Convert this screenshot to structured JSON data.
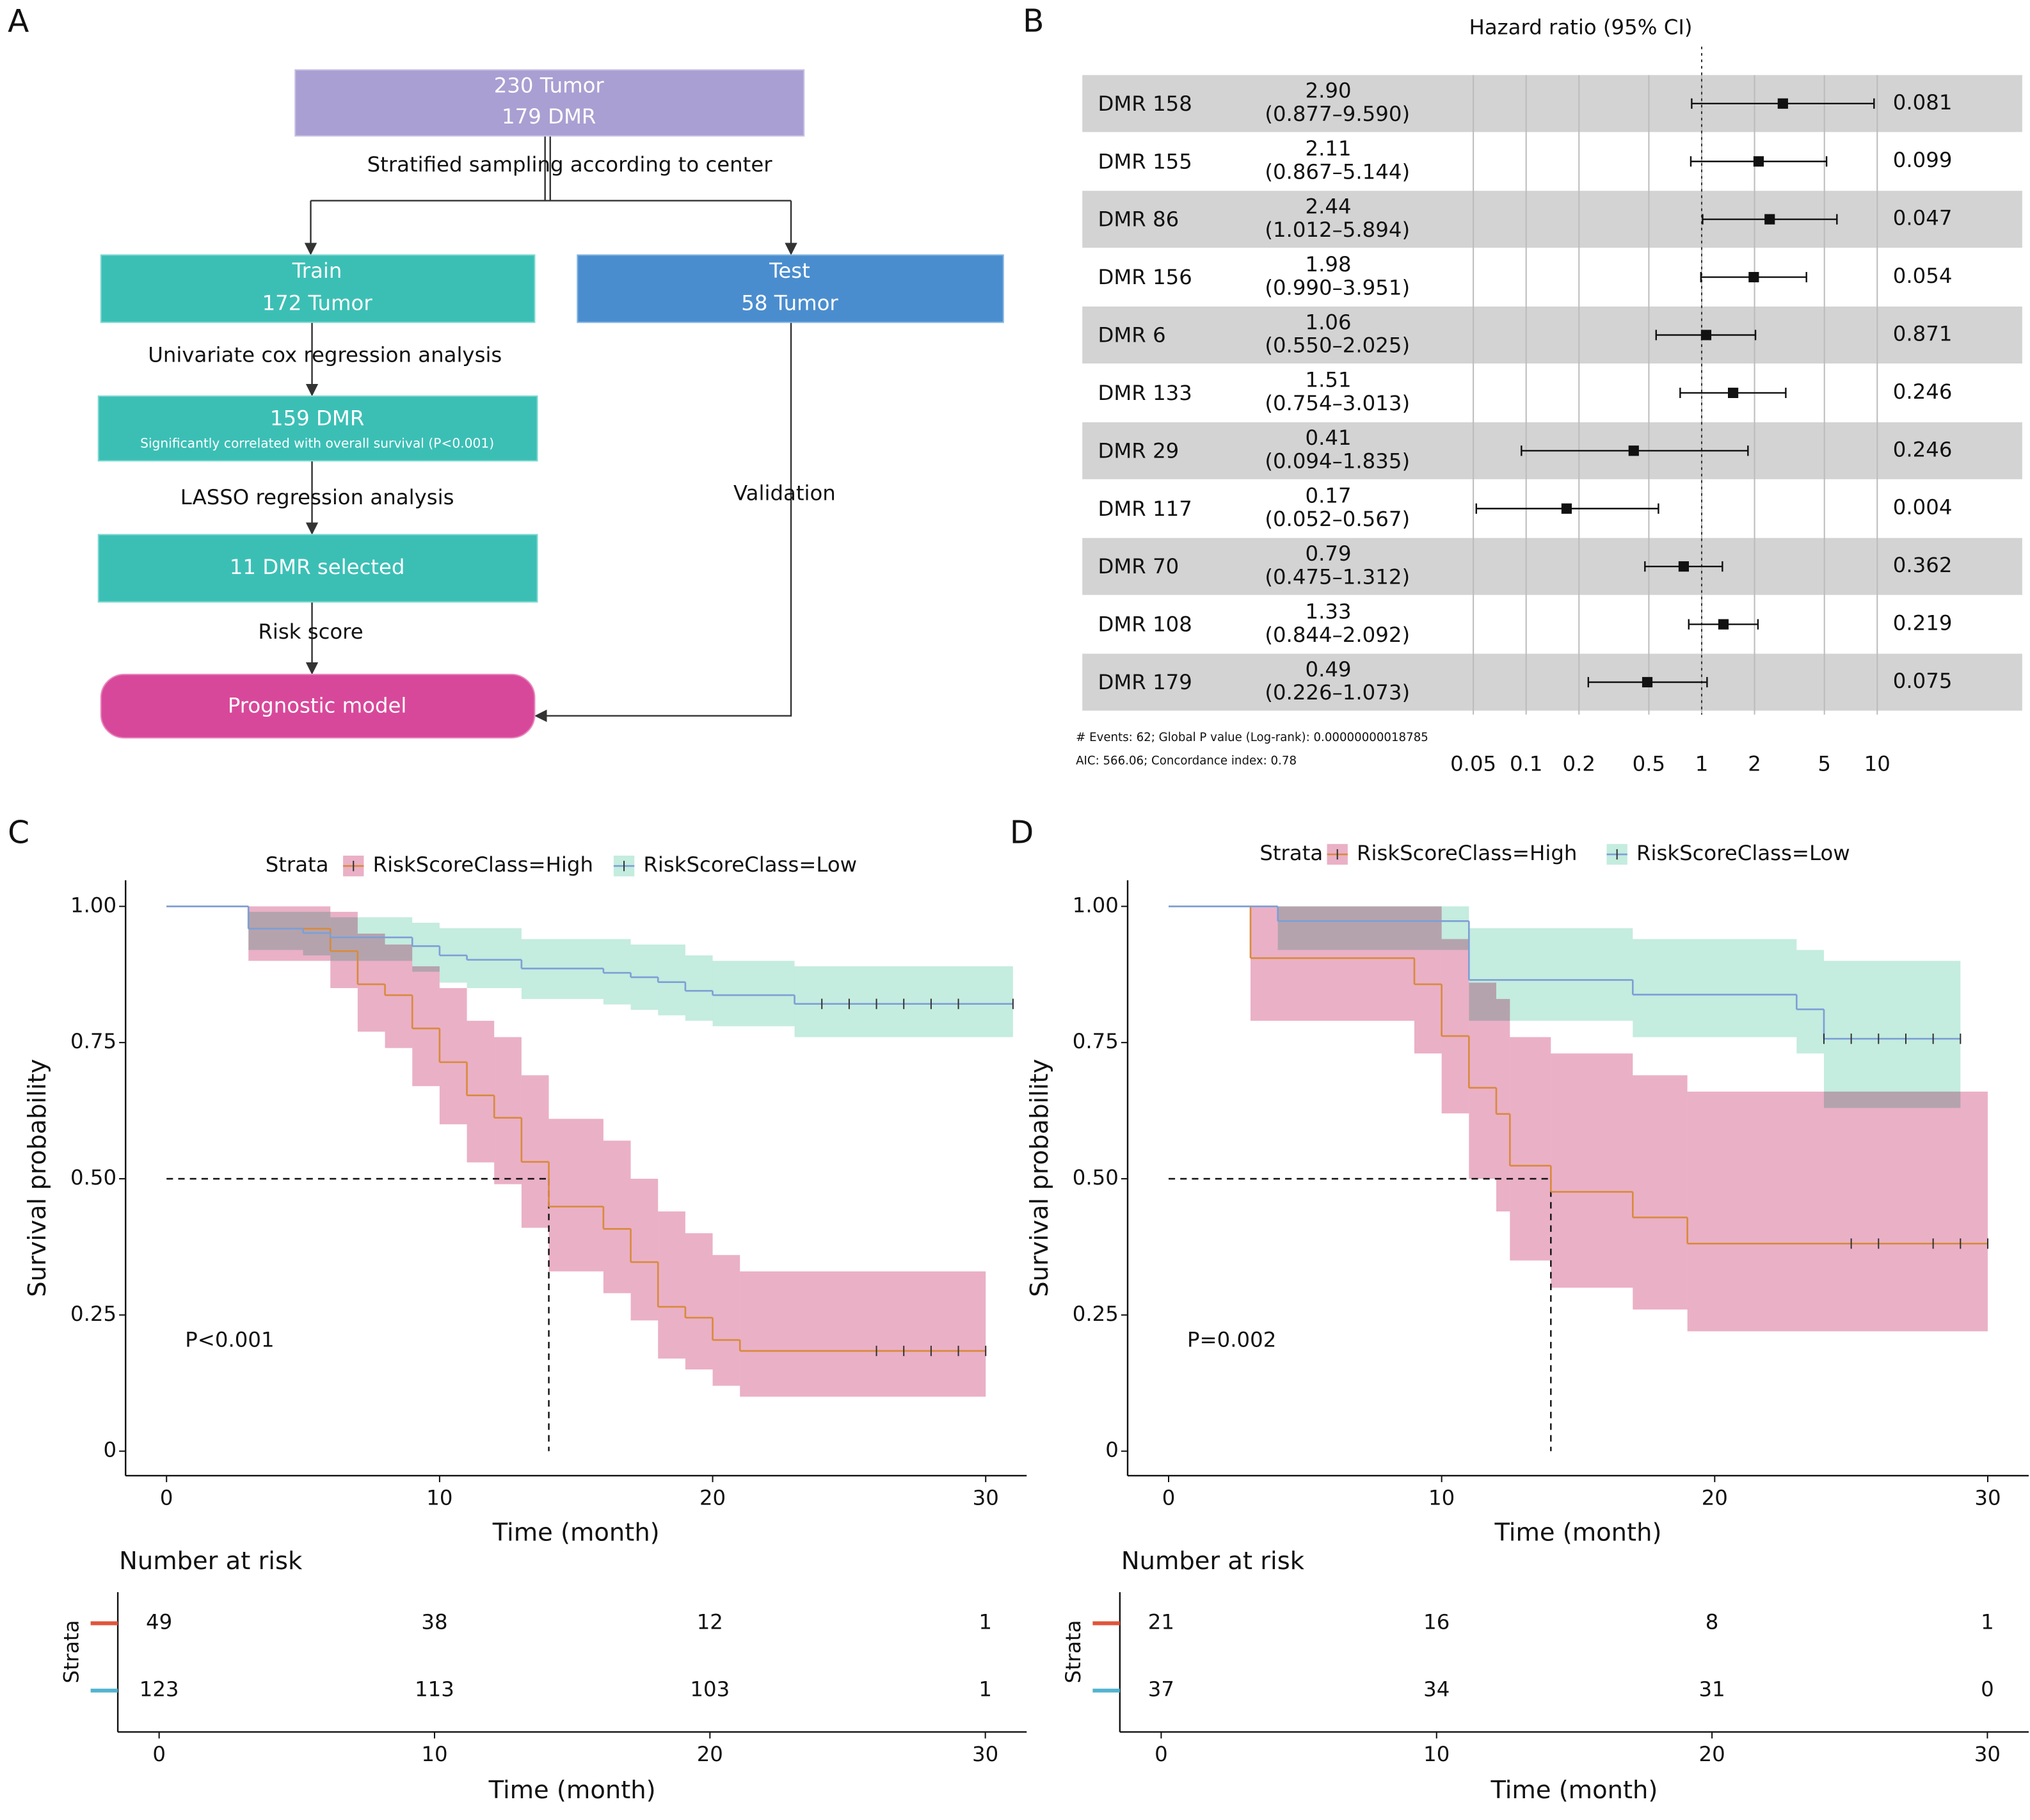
{
  "panel_labels": [
    "A",
    "B",
    "C",
    "D"
  ],
  "flowchart": {
    "nodes": [
      {
        "lines": [
          "230 Tumor",
          "179 DMR"
        ]
      },
      {
        "lines": [
          "Train",
          "172 Tumor"
        ]
      },
      {
        "lines": [
          "Test",
          "58 Tumor"
        ]
      },
      {
        "lines": [
          "159 DMR",
          "Significantly correlated with overall survival (P<0.001)"
        ]
      },
      {
        "lines": [
          "11 DMR selected"
        ]
      },
      {
        "lines": [
          "Prognostic model"
        ]
      }
    ],
    "edge_labels": [
      "Stratified sampling according to center",
      "Univariate cox regression analysis",
      "LASSO regression analysis",
      "Validation",
      "Risk score"
    ]
  },
  "chart_data": [
    {
      "type": "forest",
      "title": "Hazard ratio (95% CI)",
      "categories": [
        "DMR 158",
        "DMR 155",
        "DMR 86",
        "DMR 156",
        "DMR 6",
        "DMR 133",
        "DMR 29",
        "DMR 117",
        "DMR 70",
        "DMR 108",
        "DMR 179"
      ],
      "values": [
        2.9,
        2.11,
        2.44,
        1.98,
        1.06,
        1.51,
        0.41,
        0.17,
        0.79,
        1.33,
        0.49
      ],
      "value_labels": [
        "2.90",
        "2.11",
        "2.44",
        "1.98",
        "1.06",
        "1.51",
        "0.41",
        "0.17",
        "0.79",
        "1.33",
        "0.49"
      ],
      "lower": [
        0.877,
        0.867,
        1.012,
        0.99,
        0.55,
        0.754,
        0.094,
        0.052,
        0.475,
        0.844,
        0.226
      ],
      "upper": [
        9.59,
        5.144,
        5.894,
        3.951,
        2.025,
        3.013,
        1.835,
        0.567,
        1.312,
        2.092,
        1.073
      ],
      "ci_labels": [
        "(0.877–9.590)",
        "(0.867–5.144)",
        "(1.012–5.894)",
        "(0.990–3.951)",
        "(0.550–2.025)",
        "(0.754–3.013)",
        "(0.094–1.835)",
        "(0.052–0.567)",
        "(0.475–1.312)",
        "(0.844–2.092)",
        "(0.226–1.073)"
      ],
      "p_values": [
        0.081,
        0.099,
        0.047,
        0.054,
        0.871,
        0.246,
        0.246,
        0.004,
        0.362,
        0.219,
        0.075
      ],
      "log_x": true,
      "xlim": [
        0.05,
        10
      ],
      "xticks": [
        0.05,
        0.1,
        0.2,
        0.5,
        1,
        2,
        5,
        10
      ],
      "reference_line": 1,
      "grid": true,
      "footnotes": [
        "# Events: 62; Global P value (Log-rank): 0.00000000018785",
        "AIC: 566.06; Concordance index: 0.78"
      ]
    },
    {
      "type": "km",
      "legend_title": "Strata",
      "xlabel": "Time (month)",
      "ylabel": "Survival probability",
      "annotation": "P<0.001",
      "xlim": [
        -1.5,
        31.5
      ],
      "ylim": [
        -0.045,
        1.048
      ],
      "xticks": [
        0,
        10,
        20,
        30
      ],
      "yticks": [
        {
          "value": 1,
          "label": "1.00"
        },
        {
          "value": 0.75,
          "label": "0.75"
        },
        {
          "value": 0.5,
          "label": "0.50"
        },
        {
          "value": 0.25,
          "label": "0.25"
        },
        0
      ],
      "median_time": 14,
      "median_survival": 0.5,
      "series": [
        {
          "name": "RiskScoreClass=High",
          "color": "#d98a3d",
          "band_color": "#eab0c6",
          "x": [
            0,
            3,
            6,
            7,
            8,
            9,
            10,
            11,
            12,
            13,
            14,
            16,
            17,
            18,
            19,
            20,
            21,
            30
          ],
          "values": [
            1,
            0.959,
            0.918,
            0.857,
            0.837,
            0.776,
            0.714,
            0.653,
            0.612,
            0.531,
            0.449,
            0.408,
            0.347,
            0.265,
            0.245,
            0.204,
            0.184,
            0.184
          ],
          "lower": [
            1,
            0.9,
            0.85,
            0.77,
            0.74,
            0.67,
            0.6,
            0.53,
            0.49,
            0.41,
            0.33,
            0.29,
            0.24,
            0.17,
            0.15,
            0.12,
            0.1,
            0.1
          ],
          "upper": [
            1,
            1.0,
            0.99,
            0.95,
            0.93,
            0.89,
            0.85,
            0.79,
            0.76,
            0.69,
            0.61,
            0.57,
            0.5,
            0.44,
            0.4,
            0.36,
            0.33,
            0.33
          ],
          "censor": [
            26,
            27,
            28,
            29,
            30
          ]
        },
        {
          "name": "RiskScoreClass=Low",
          "color": "#7d9fd6",
          "band_color": "#c4ecdf",
          "x": [
            0,
            3,
            5,
            6,
            9,
            10,
            11,
            13,
            16,
            17,
            18,
            19,
            20,
            23,
            31
          ],
          "values": [
            1,
            0.959,
            0.951,
            0.943,
            0.927,
            0.91,
            0.902,
            0.886,
            0.878,
            0.87,
            0.861,
            0.845,
            0.837,
            0.821,
            0.821
          ],
          "lower": [
            1,
            0.92,
            0.91,
            0.9,
            0.88,
            0.86,
            0.85,
            0.83,
            0.82,
            0.81,
            0.8,
            0.79,
            0.78,
            0.76,
            0.76
          ],
          "upper": [
            1,
            0.99,
            0.99,
            0.98,
            0.97,
            0.96,
            0.96,
            0.94,
            0.94,
            0.93,
            0.93,
            0.91,
            0.9,
            0.89,
            0.89
          ],
          "censor": [
            24,
            25,
            26,
            27,
            28,
            29,
            31
          ]
        }
      ],
      "risk_table": {
        "title": "Number at risk",
        "ylabel": "Strata",
        "xlabel": "Time (month)",
        "xlim": [
          -1.5,
          31.5
        ],
        "xticks": [
          0,
          10,
          20,
          30
        ],
        "times": [
          0,
          10,
          20,
          30
        ],
        "row_colors": [
          "#e0553a",
          "#53b3cf"
        ],
        "rows": [
          [
            49,
            38,
            12,
            1
          ],
          [
            123,
            113,
            103,
            1
          ]
        ]
      }
    },
    {
      "type": "km",
      "legend_title": "Strata",
      "xlabel": "Time (month)",
      "ylabel": "Survival probability",
      "annotation": "P=0.002",
      "xlim": [
        -1.5,
        31.5
      ],
      "ylim": [
        -0.045,
        1.048
      ],
      "xticks": [
        0,
        10,
        20,
        30
      ],
      "yticks": [
        {
          "value": 1,
          "label": "1.00"
        },
        {
          "value": 0.75,
          "label": "0.75"
        },
        {
          "value": 0.5,
          "label": "0.50"
        },
        {
          "value": 0.25,
          "label": "0.25"
        },
        0
      ],
      "median_time": 14,
      "median_survival": 0.5,
      "series": [
        {
          "name": "RiskScoreClass=High",
          "color": "#d98a3d",
          "band_color": "#eab0c6",
          "x": [
            0,
            3,
            9,
            10,
            11,
            12,
            12.5,
            14,
            17,
            19,
            30
          ],
          "values": [
            1,
            0.905,
            0.857,
            0.762,
            0.667,
            0.619,
            0.524,
            0.476,
            0.429,
            0.381,
            0.381
          ],
          "lower": [
            1,
            0.79,
            0.73,
            0.62,
            0.5,
            0.44,
            0.35,
            0.3,
            0.26,
            0.22,
            0.22
          ],
          "upper": [
            1,
            1,
            1,
            0.94,
            0.86,
            0.83,
            0.76,
            0.73,
            0.69,
            0.66,
            0.66
          ],
          "censor": [
            25,
            26,
            28,
            29,
            30
          ]
        },
        {
          "name": "RiskScoreClass=Low",
          "color": "#7d9fd6",
          "band_color": "#c4ecdf",
          "x": [
            0,
            4,
            11,
            17,
            23,
            24,
            29
          ],
          "values": [
            1,
            0.973,
            0.865,
            0.838,
            0.811,
            0.757,
            0.757
          ],
          "lower": [
            1,
            0.92,
            0.79,
            0.76,
            0.73,
            0.63,
            0.63
          ],
          "upper": [
            1,
            1,
            0.96,
            0.94,
            0.92,
            0.9,
            0.9
          ],
          "censor": [
            24,
            25,
            26,
            27,
            28,
            29
          ]
        }
      ],
      "risk_table": {
        "title": "Number at risk",
        "ylabel": "Strata",
        "xlabel": "Time (month)",
        "xlim": [
          -1.5,
          31.5
        ],
        "xticks": [
          0,
          10,
          20,
          30
        ],
        "times": [
          0,
          10,
          20,
          30
        ],
        "row_colors": [
          "#e0553a",
          "#53b3cf"
        ],
        "rows": [
          [
            21,
            16,
            8,
            1
          ],
          [
            37,
            34,
            31,
            0
          ]
        ]
      }
    }
  ]
}
